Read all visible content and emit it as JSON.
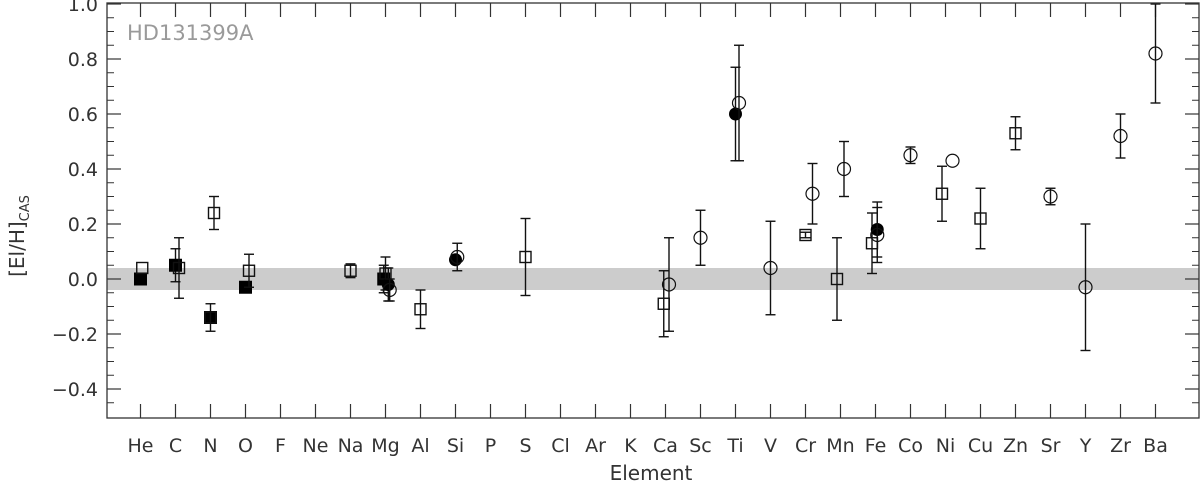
{
  "chart_data": {
    "type": "scatter",
    "title": "",
    "panel_label": "HD131399A",
    "xlabel": "Element",
    "ylabel_main": "[El/H]",
    "ylabel_sub": "CAS",
    "ylim": [
      -0.5,
      1.02
    ],
    "y_ticks": [
      1.0,
      0.8,
      0.6,
      0.4,
      0.2,
      0.0,
      -0.2,
      -0.4
    ],
    "y_tick_labels": [
      "1.0",
      "0.8",
      "0.6",
      "0.4",
      "0.2",
      "0.0",
      "−0.2",
      "−0.4"
    ],
    "categories": [
      "He",
      "C",
      "N",
      "O",
      "F",
      "Ne",
      "Na",
      "Mg",
      "Al",
      "Si",
      "P",
      "S",
      "Cl",
      "Ar",
      "K",
      "Ca",
      "Sc",
      "Ti",
      "V",
      "Cr",
      "Mn",
      "Fe",
      "Co",
      "Ni",
      "Cu",
      "Zn",
      "Sr",
      "Y",
      "Zr",
      "Ba"
    ],
    "solar_band": {
      "low": -0.04,
      "high": 0.04,
      "color": "#cccccc"
    },
    "grid": false,
    "series": [
      {
        "marker": "filled-square",
        "points": [
          {
            "element": "He",
            "offset": 0.0,
            "y": 0.0,
            "err": null
          },
          {
            "element": "C",
            "offset": 0.0,
            "y": 0.05,
            "err": 0.06
          },
          {
            "element": "N",
            "offset": 0.0,
            "y": -0.14,
            "err": null
          },
          {
            "element": "O",
            "offset": 0.0,
            "y": -0.03,
            "err": null
          },
          {
            "element": "Mg",
            "offset": -0.05,
            "y": 0.0,
            "err": 0.05
          }
        ]
      },
      {
        "marker": "open-square",
        "points": [
          {
            "element": "He",
            "offset": 0.05,
            "y": 0.04,
            "err": null
          },
          {
            "element": "C",
            "offset": 0.1,
            "y": 0.04,
            "err": 0.11
          },
          {
            "element": "N",
            "offset": 0.1,
            "y": 0.24,
            "err": 0.06
          },
          {
            "element": "N",
            "offset": 0.0,
            "y": -0.14,
            "err": 0.05
          },
          {
            "element": "O",
            "offset": 0.1,
            "y": 0.03,
            "err": 0.06
          },
          {
            "element": "Na",
            "offset": 0.0,
            "y": 0.03,
            "err": 0.025
          },
          {
            "element": "Mg",
            "offset": 0.0,
            "y": 0.02,
            "err": 0.06
          },
          {
            "element": "Al",
            "offset": 0.0,
            "y": -0.11,
            "err": 0.07
          },
          {
            "element": "S",
            "offset": 0.0,
            "y": 0.08,
            "err": 0.14
          },
          {
            "element": "Ca",
            "offset": -0.05,
            "y": -0.09,
            "err": 0.12
          },
          {
            "element": "Cr",
            "offset": 0.0,
            "y": 0.16,
            "err": 0.01
          },
          {
            "element": "Mn",
            "offset": -0.1,
            "y": 0.0,
            "err": 0.15
          },
          {
            "element": "Fe",
            "offset": -0.1,
            "y": 0.13,
            "err": 0.11
          },
          {
            "element": "Ni",
            "offset": -0.1,
            "y": 0.31,
            "err": 0.1
          },
          {
            "element": "Cu",
            "offset": 0.0,
            "y": 0.22,
            "err": 0.11
          },
          {
            "element": "Zn",
            "offset": 0.0,
            "y": 0.53,
            "err": 0.06
          }
        ]
      },
      {
        "marker": "filled-circle",
        "points": [
          {
            "element": "Mg",
            "offset": 0.08,
            "y": -0.02,
            "err": 0.06
          },
          {
            "element": "Si",
            "offset": 0.0,
            "y": 0.07,
            "err": null
          },
          {
            "element": "Ti",
            "offset": 0.0,
            "y": 0.6,
            "err": 0.17
          },
          {
            "element": "Fe",
            "offset": 0.05,
            "y": 0.18,
            "err": 0.1
          }
        ]
      },
      {
        "marker": "open-circle",
        "points": [
          {
            "element": "Mg",
            "offset": 0.12,
            "y": -0.04,
            "err": 0.04
          },
          {
            "element": "Si",
            "offset": 0.05,
            "y": 0.08,
            "err": 0.05
          },
          {
            "element": "Ca",
            "offset": 0.1,
            "y": -0.02,
            "err": 0.17
          },
          {
            "element": "Sc",
            "offset": 0.0,
            "y": 0.15,
            "err": 0.1
          },
          {
            "element": "Ti",
            "offset": 0.1,
            "y": 0.64,
            "err": 0.21
          },
          {
            "element": "V",
            "offset": 0.0,
            "y": 0.04,
            "err": 0.17
          },
          {
            "element": "Cr",
            "offset": 0.2,
            "y": 0.31,
            "err": 0.11
          },
          {
            "element": "Mn",
            "offset": 0.1,
            "y": 0.4,
            "err": 0.1
          },
          {
            "element": "Fe",
            "offset": 0.05,
            "y": 0.16,
            "err": 0.1
          },
          {
            "element": "Co",
            "offset": 0.0,
            "y": 0.45,
            "err": 0.03
          },
          {
            "element": "Ni",
            "offset": 0.2,
            "y": 0.43,
            "err": null
          },
          {
            "element": "Sr",
            "offset": 0.0,
            "y": 0.3,
            "err": 0.03
          },
          {
            "element": "Y",
            "offset": 0.0,
            "y": -0.03,
            "err": 0.23
          },
          {
            "element": "Zr",
            "offset": 0.0,
            "y": 0.52,
            "err": 0.08
          },
          {
            "element": "Ba",
            "offset": 0.0,
            "y": 0.82,
            "err": 0.18
          }
        ]
      }
    ]
  }
}
